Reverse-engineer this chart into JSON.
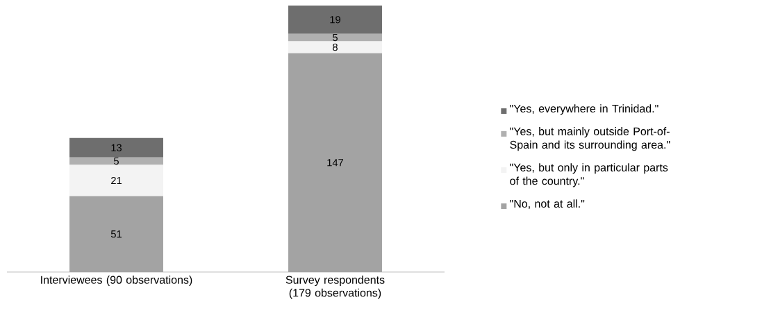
{
  "chart_data": {
    "type": "bar",
    "stacked": true,
    "data_labels": true,
    "legend": "right",
    "categories": [
      "Interviewees (90 observations)",
      "Survey respondents (179 observations)"
    ],
    "series": [
      {
        "name": "\"No, not at all.\"",
        "color": "#a3a3a3",
        "values": [
          51,
          147
        ]
      },
      {
        "name": "\"Yes, but only in particular parts of the country.\"",
        "color": "#f3f3f3",
        "values": [
          21,
          8
        ]
      },
      {
        "name": "\"Yes, but mainly outside Port-of-Spain and its surrounding area.\"",
        "color": "#b0b0b0",
        "values": [
          5,
          5
        ]
      },
      {
        "name": "\"Yes, everywhere in Trinidad.\"",
        "color": "#6e6e6e",
        "values": [
          13,
          19
        ]
      }
    ]
  }
}
